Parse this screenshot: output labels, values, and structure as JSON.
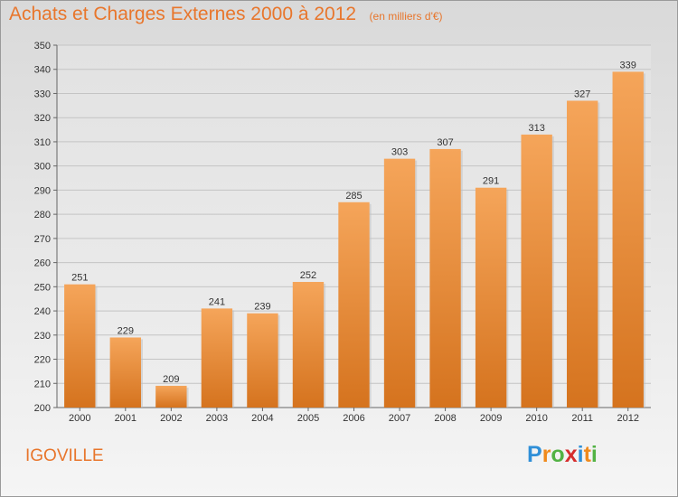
{
  "header": {
    "title": "Achats et Charges Externes 2000 à 2012",
    "unit": "(en milliers d'€)"
  },
  "footer": {
    "town": "IGOVILLE",
    "brand_letters": [
      "P",
      "r",
      "o",
      "x",
      "i",
      "t",
      "i"
    ],
    "brand_colors": [
      "#2f8fd8",
      "#f08a1c",
      "#52b244",
      "#d62d2d",
      "#2f8fd8",
      "#f08a1c",
      "#52b244"
    ]
  },
  "colors": {
    "bar_top": "#f5a55a",
    "bar_bottom": "#d5731e",
    "accent": "#e8762c"
  },
  "chart_data": {
    "type": "bar",
    "title": "Achats et Charges Externes 2000 à 2012",
    "categories": [
      "2000",
      "2001",
      "2002",
      "2003",
      "2004",
      "2005",
      "2006",
      "2007",
      "2008",
      "2009",
      "2010",
      "2011",
      "2012"
    ],
    "values": [
      251,
      229,
      209,
      241,
      239,
      252,
      285,
      303,
      307,
      291,
      313,
      327,
      339
    ],
    "ylim": [
      200,
      350
    ],
    "yticks": [
      200,
      210,
      220,
      230,
      240,
      250,
      260,
      270,
      280,
      290,
      300,
      310,
      320,
      330,
      340,
      350
    ],
    "xlabel": "",
    "ylabel": "",
    "grid": true
  }
}
